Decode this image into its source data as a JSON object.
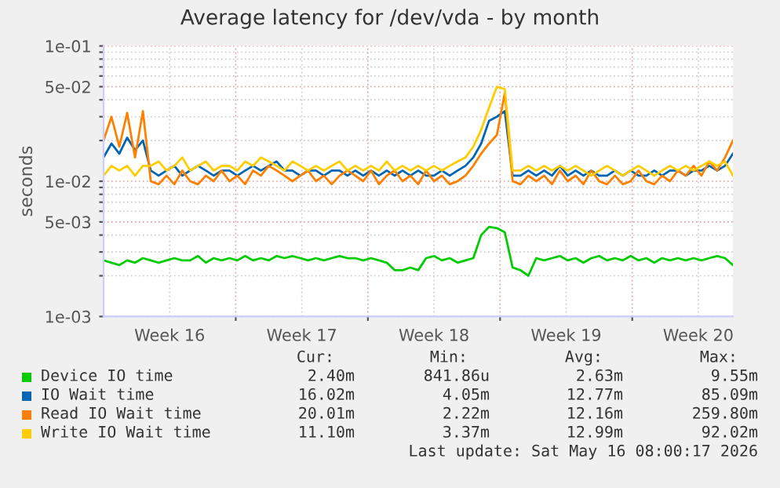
{
  "chart_data": {
    "type": "line",
    "title": "Average latency for /dev/vda - by month",
    "ylabel": "seconds",
    "x": [
      "2026-04-13T00:00",
      "2026-04-13T10:00",
      "2026-04-13T20:00",
      "2026-04-14T06:00",
      "2026-04-14T16:00",
      "2026-04-15T02:00",
      "2026-04-15T12:00",
      "2026-04-15T22:00",
      "2026-04-16T08:00",
      "2026-04-16T18:00",
      "2026-04-17T04:00",
      "2026-04-17T14:00",
      "2026-04-18T00:00",
      "2026-04-18T10:00",
      "2026-04-18T20:00",
      "2026-04-19T06:00",
      "2026-04-19T16:00",
      "2026-04-20T02:00",
      "2026-04-20T12:00",
      "2026-04-20T22:00",
      "2026-04-21T08:00",
      "2026-04-21T18:00",
      "2026-04-22T04:00",
      "2026-04-22T14:00",
      "2026-04-23T00:00",
      "2026-04-23T10:00",
      "2026-04-23T20:00",
      "2026-04-24T06:00",
      "2026-04-24T16:00",
      "2026-04-25T02:00",
      "2026-04-25T12:00",
      "2026-04-25T22:00",
      "2026-04-26T08:00",
      "2026-04-26T18:00",
      "2026-04-27T04:00",
      "2026-04-27T14:00",
      "2026-04-28T00:00",
      "2026-04-28T10:00",
      "2026-04-28T20:00",
      "2026-04-29T06:00",
      "2026-04-29T16:00",
      "2026-04-30T02:00",
      "2026-04-30T12:00",
      "2026-04-30T22:00",
      "2026-05-01T08:00",
      "2026-05-01T18:00",
      "2026-05-02T04:00",
      "2026-05-02T14:00",
      "2026-05-03T00:00",
      "2026-05-03T10:00",
      "2026-05-03T20:00",
      "2026-05-04T06:00",
      "2026-05-04T16:00",
      "2026-05-05T02:00",
      "2026-05-05T12:00",
      "2026-05-05T22:00",
      "2026-05-06T08:00",
      "2026-05-06T18:00",
      "2026-05-07T04:00",
      "2026-05-07T14:00",
      "2026-05-08T00:00",
      "2026-05-08T10:00",
      "2026-05-08T20:00",
      "2026-05-09T06:00",
      "2026-05-09T16:00",
      "2026-05-10T02:00",
      "2026-05-10T12:00",
      "2026-05-10T22:00",
      "2026-05-11T08:00",
      "2026-05-11T18:00",
      "2026-05-12T04:00",
      "2026-05-12T14:00",
      "2026-05-13T00:00",
      "2026-05-13T10:00",
      "2026-05-13T20:00",
      "2026-05-14T06:00",
      "2026-05-14T16:00",
      "2026-05-15T02:00",
      "2026-05-15T12:00",
      "2026-05-15T22:00",
      "2026-05-16T08:00"
    ],
    "series": [
      {
        "name": "Device IO time",
        "color": "#00cc00",
        "values": [
          0.0026,
          0.0025,
          0.0024,
          0.0026,
          0.0025,
          0.0027,
          0.0026,
          0.0025,
          0.0026,
          0.0027,
          0.0026,
          0.0026,
          0.0028,
          0.0025,
          0.0027,
          0.0026,
          0.0027,
          0.0026,
          0.0028,
          0.0026,
          0.0027,
          0.0026,
          0.0028,
          0.0027,
          0.0028,
          0.0027,
          0.0026,
          0.0027,
          0.0026,
          0.0027,
          0.0028,
          0.0027,
          0.0027,
          0.0026,
          0.0027,
          0.0026,
          0.0025,
          0.0022,
          0.0022,
          0.0023,
          0.0022,
          0.0027,
          0.0028,
          0.0026,
          0.0027,
          0.0025,
          0.0026,
          0.0027,
          0.004,
          0.0046,
          0.0045,
          0.0042,
          0.0023,
          0.0022,
          0.002,
          0.0027,
          0.0026,
          0.0027,
          0.0028,
          0.0026,
          0.0027,
          0.0025,
          0.0027,
          0.0028,
          0.0026,
          0.0027,
          0.0026,
          0.0028,
          0.0026,
          0.0027,
          0.0025,
          0.0027,
          0.0026,
          0.0027,
          0.0026,
          0.0027,
          0.0026,
          0.0027,
          0.0028,
          0.0027,
          0.0024
        ]
      },
      {
        "name": "IO Wait time",
        "color": "#0066b3",
        "values": [
          0.015,
          0.019,
          0.016,
          0.021,
          0.017,
          0.02,
          0.012,
          0.011,
          0.012,
          0.013,
          0.011,
          0.012,
          0.013,
          0.012,
          0.011,
          0.012,
          0.012,
          0.011,
          0.012,
          0.013,
          0.012,
          0.013,
          0.014,
          0.012,
          0.012,
          0.011,
          0.012,
          0.012,
          0.011,
          0.012,
          0.012,
          0.011,
          0.012,
          0.011,
          0.012,
          0.011,
          0.012,
          0.011,
          0.012,
          0.011,
          0.012,
          0.011,
          0.011,
          0.012,
          0.011,
          0.012,
          0.013,
          0.015,
          0.019,
          0.028,
          0.03,
          0.033,
          0.011,
          0.011,
          0.012,
          0.011,
          0.012,
          0.011,
          0.013,
          0.011,
          0.012,
          0.011,
          0.012,
          0.011,
          0.011,
          0.012,
          0.011,
          0.012,
          0.011,
          0.011,
          0.012,
          0.011,
          0.012,
          0.012,
          0.011,
          0.012,
          0.012,
          0.013,
          0.012,
          0.013,
          0.016
        ]
      },
      {
        "name": "Read IO Wait time",
        "color": "#ff8000",
        "values": [
          0.02,
          0.03,
          0.018,
          0.032,
          0.015,
          0.033,
          0.01,
          0.0095,
          0.011,
          0.0095,
          0.012,
          0.01,
          0.0095,
          0.011,
          0.01,
          0.012,
          0.01,
          0.011,
          0.0095,
          0.012,
          0.011,
          0.013,
          0.012,
          0.011,
          0.01,
          0.011,
          0.012,
          0.01,
          0.011,
          0.0095,
          0.011,
          0.012,
          0.011,
          0.01,
          0.012,
          0.0095,
          0.011,
          0.012,
          0.01,
          0.011,
          0.0095,
          0.012,
          0.01,
          0.011,
          0.0095,
          0.01,
          0.011,
          0.013,
          0.016,
          0.019,
          0.022,
          0.045,
          0.01,
          0.0095,
          0.011,
          0.01,
          0.011,
          0.0095,
          0.012,
          0.01,
          0.011,
          0.0095,
          0.012,
          0.01,
          0.0095,
          0.011,
          0.0095,
          0.01,
          0.012,
          0.01,
          0.0095,
          0.011,
          0.01,
          0.012,
          0.011,
          0.013,
          0.011,
          0.014,
          0.012,
          0.015,
          0.02
        ]
      },
      {
        "name": "Write IO Wait time",
        "color": "#ffcc00",
        "values": [
          0.011,
          0.013,
          0.012,
          0.013,
          0.011,
          0.013,
          0.013,
          0.014,
          0.012,
          0.013,
          0.015,
          0.012,
          0.013,
          0.014,
          0.012,
          0.013,
          0.013,
          0.012,
          0.014,
          0.013,
          0.015,
          0.014,
          0.013,
          0.012,
          0.014,
          0.013,
          0.012,
          0.013,
          0.012,
          0.013,
          0.014,
          0.012,
          0.013,
          0.012,
          0.013,
          0.012,
          0.014,
          0.012,
          0.013,
          0.012,
          0.013,
          0.012,
          0.013,
          0.012,
          0.013,
          0.014,
          0.015,
          0.018,
          0.024,
          0.035,
          0.05,
          0.048,
          0.012,
          0.012,
          0.013,
          0.012,
          0.013,
          0.012,
          0.013,
          0.012,
          0.013,
          0.012,
          0.011,
          0.012,
          0.013,
          0.012,
          0.011,
          0.012,
          0.013,
          0.012,
          0.011,
          0.012,
          0.013,
          0.012,
          0.013,
          0.012,
          0.013,
          0.014,
          0.013,
          0.014,
          0.011
        ]
      }
    ],
    "log": "y",
    "xlim": [
      "2026-04-13T00:00",
      "2026-05-16T08:00"
    ],
    "xticks": [
      {
        "value": "2026-04-16T12:00",
        "label": "Week 16"
      },
      {
        "value": "2026-04-20",
        "label": null
      },
      {
        "value": "2026-04-23T12:00",
        "label": "Week 17"
      },
      {
        "value": "2026-04-27",
        "label": null
      },
      {
        "value": "2026-04-30T12:00",
        "label": "Week 18"
      },
      {
        "value": "2026-05-04",
        "label": null
      },
      {
        "value": "2026-05-07T12:00",
        "label": "Week 19"
      },
      {
        "value": "2026-05-11",
        "label": null
      },
      {
        "value": "2026-05-14T12:00",
        "label": "Week 20"
      }
    ],
    "ylim": [
      0.001,
      0.1
    ],
    "yticks": [
      {
        "value": 0.001,
        "label": "1e-03"
      },
      {
        "value": 0.002,
        "label": null
      },
      {
        "value": 0.003,
        "label": null
      },
      {
        "value": 0.004,
        "label": null
      },
      {
        "value": 0.005,
        "label": "5e-03"
      },
      {
        "value": 0.006,
        "label": null
      },
      {
        "value": 0.007,
        "label": null
      },
      {
        "value": 0.008,
        "label": null
      },
      {
        "value": 0.009,
        "label": null
      },
      {
        "value": 0.01,
        "label": "1e-02"
      },
      {
        "value": 0.02,
        "label": null
      },
      {
        "value": 0.03,
        "label": null
      },
      {
        "value": 0.04,
        "label": null
      },
      {
        "value": 0.05,
        "label": "5e-02"
      },
      {
        "value": 0.06,
        "label": null
      },
      {
        "value": 0.07,
        "label": null
      },
      {
        "value": 0.08,
        "label": null
      },
      {
        "value": 0.09,
        "label": null
      },
      {
        "value": 0.1,
        "label": "1e-01"
      }
    ],
    "grid": true,
    "legend": "bottom",
    "marker": "none",
    "line_style": "solid",
    "annotations": [
      "Cur:",
      "Min:",
      "Avg:",
      "Max:",
      "2.40m",
      "841.86u",
      "2.63m",
      "9.55m",
      "16.02m",
      "4.05m",
      "12.77m",
      "85.09m",
      "20.01m",
      "2.22m",
      "12.16m",
      "259.80m",
      "11.10m",
      "3.37m",
      "12.99m",
      "92.02m",
      "Last update: Sat May 16 08:00:17 2026"
    ]
  }
}
